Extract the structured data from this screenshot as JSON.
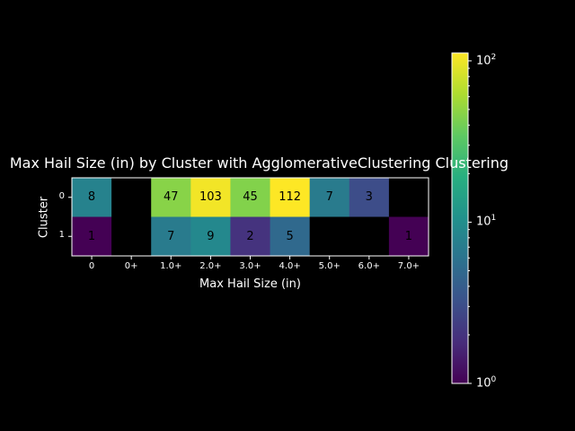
{
  "chart_data": {
    "type": "heatmap",
    "title": "Max Hail Size (in) by Cluster with AgglomerativeClustering Clustering",
    "xlabel": "Max Hail Size (in)",
    "ylabel": "Cluster",
    "x_categories": [
      "0",
      "0+",
      "1.0+",
      "2.0+",
      "3.0+",
      "4.0+",
      "5.0+",
      "6.0+",
      "7.0+"
    ],
    "y_categories": [
      "0",
      "1"
    ],
    "values": [
      [
        8,
        null,
        47,
        103,
        45,
        112,
        7,
        3,
        null
      ],
      [
        1,
        null,
        7,
        9,
        2,
        5,
        null,
        null,
        1
      ]
    ],
    "colorbar": {
      "scale": "log",
      "range": [
        1,
        112
      ],
      "colormap": "viridis",
      "ticks": [
        {
          "base": "10",
          "exp": "0",
          "value": 1
        },
        {
          "base": "10",
          "exp": "1",
          "value": 10
        },
        {
          "base": "10",
          "exp": "2",
          "value": 100
        }
      ]
    },
    "colors": {
      "background": "#000000",
      "missing": "#000000",
      "text": "#ffffff"
    }
  }
}
